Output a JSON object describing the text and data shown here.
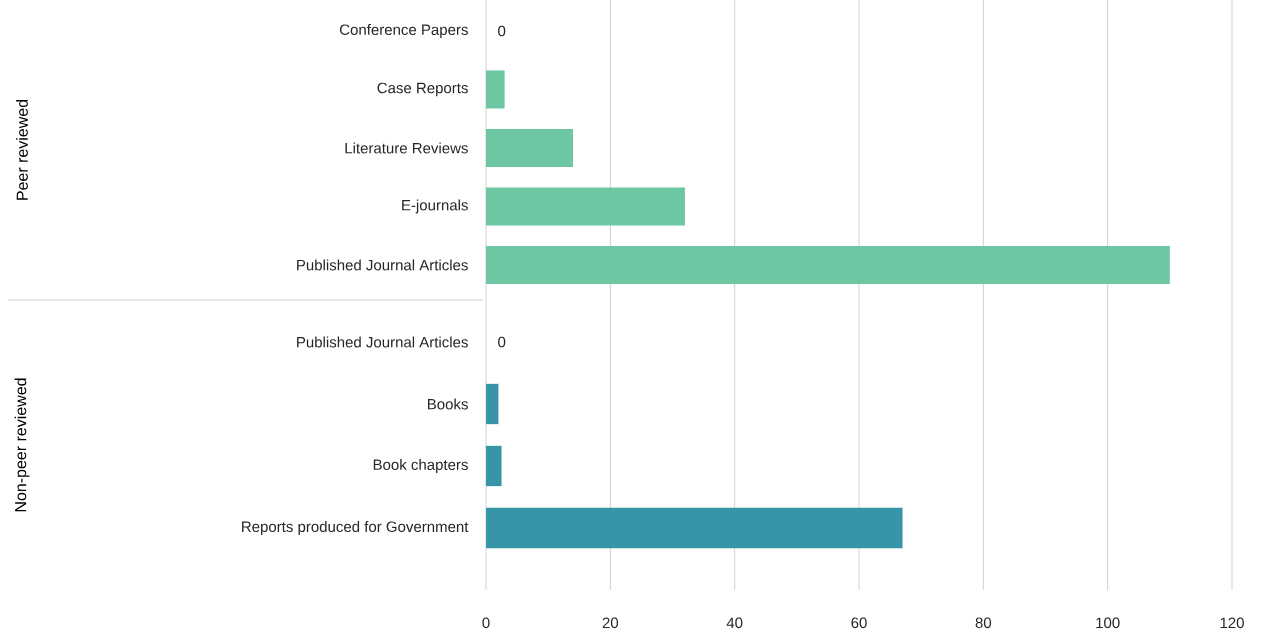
{
  "chart_data": [
    {
      "type": "bar",
      "orientation": "horizontal",
      "ylabel": "Peer reviewed",
      "categories": [
        "Conference Papers",
        "Case Reports",
        "Literature Reviews",
        "E-journals",
        "Published Journal Articles"
      ],
      "values": [
        0,
        3,
        14,
        32,
        110
      ],
      "value_labels": [
        "0",
        null,
        null,
        null,
        null
      ],
      "color": "#6dc7a2",
      "xlim": [
        0,
        120
      ],
      "xticks": [
        0,
        20,
        40,
        60,
        80,
        100,
        120
      ],
      "grid": "x",
      "tick_labels": "y"
    },
    {
      "type": "bar",
      "orientation": "horizontal",
      "ylabel": "Non-peer reviewed",
      "categories": [
        "Published Journal Articles",
        "Books",
        "Book chapters",
        "Reports produced for Government"
      ],
      "values": [
        0,
        2,
        2.5,
        67
      ],
      "value_labels": [
        "0",
        null,
        null,
        null
      ],
      "color": "#3795a8",
      "xlim": [
        0,
        120
      ],
      "xticks": [
        0,
        20,
        40,
        60,
        80,
        100,
        120
      ],
      "grid": "x"
    }
  ]
}
